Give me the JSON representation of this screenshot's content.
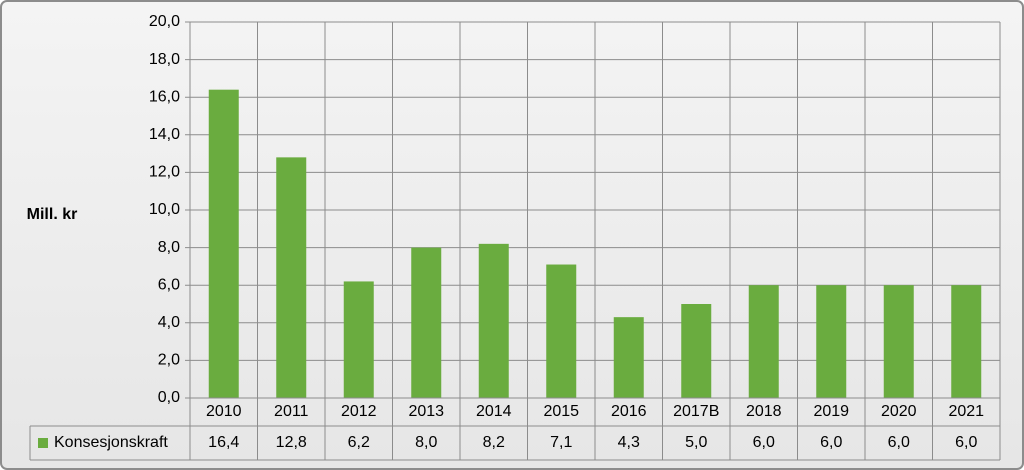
{
  "chart_data": {
    "type": "bar",
    "y_label": "Mill. kr",
    "categories": [
      "2010",
      "2011",
      "2012",
      "2013",
      "2014",
      "2015",
      "2016",
      "2017B",
      "2018",
      "2019",
      "2020",
      "2021"
    ],
    "series": [
      {
        "name": "Konsesjonskraft",
        "color": "#6aac3f",
        "values": [
          16.4,
          12.8,
          6.2,
          8.0,
          8.2,
          7.1,
          4.3,
          5.0,
          6.0,
          6.0,
          6.0,
          6.0
        ],
        "value_labels": [
          "16,4",
          "12,8",
          "6,2",
          "8,0",
          "8,2",
          "7,1",
          "4,3",
          "5,0",
          "6,0",
          "6,0",
          "6,0",
          "6,0"
        ]
      }
    ],
    "ylim": [
      0,
      20
    ],
    "yticks": [
      {
        "value": 0,
        "label": "0,0"
      },
      {
        "value": 2,
        "label": "2,0"
      },
      {
        "value": 4,
        "label": "4,0"
      },
      {
        "value": 6,
        "label": "6,0"
      },
      {
        "value": 8,
        "label": "8,0"
      },
      {
        "value": 10,
        "label": "10,0"
      },
      {
        "value": 12,
        "label": "12,0"
      },
      {
        "value": 14,
        "label": "14,0"
      },
      {
        "value": 16,
        "label": "16,0"
      },
      {
        "value": 18,
        "label": "18,0"
      },
      {
        "value": 20,
        "label": "20,0"
      }
    ],
    "grid": true
  }
}
